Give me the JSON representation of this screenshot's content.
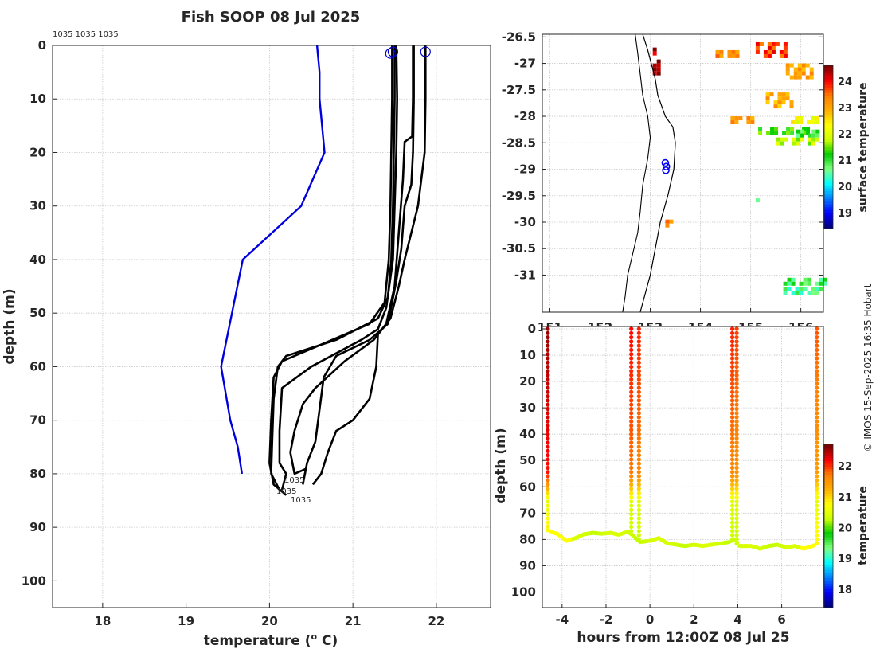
{
  "title": "Fish SOOP 08 Jul 2025",
  "copyright": "© IMOS 15-Sep-2025 16:35 Hobart",
  "top_labels": "1035 1035 1035",
  "profile_labels": [
    "1035",
    "1035",
    "1035"
  ],
  "chart_data": [
    {
      "id": "profiles",
      "type": "line",
      "xlabel": "temperature (o C)",
      "xlabel_main": "temperature (",
      "xlabel_sup": "o",
      "xlabel_tail": " C)",
      "ylabel": "depth (m)",
      "xlim": [
        17.4,
        22.65
      ],
      "ylim": [
        0,
        105
      ],
      "yreversed": true,
      "xticks": [
        18,
        19,
        20,
        21,
        22
      ],
      "yticks": [
        0,
        10,
        20,
        30,
        40,
        50,
        60,
        70,
        80,
        90,
        100
      ],
      "grid": true,
      "climatology": {
        "name": "climatology",
        "color": "#0000dd",
        "points": [
          [
            20.57,
            0
          ],
          [
            20.6,
            5
          ],
          [
            20.6,
            10
          ],
          [
            20.66,
            20
          ],
          [
            20.38,
            30
          ],
          [
            19.68,
            40
          ],
          [
            19.55,
            50
          ],
          [
            19.42,
            60
          ],
          [
            19.53,
            70
          ],
          [
            19.62,
            75
          ],
          [
            19.67,
            80
          ]
        ]
      },
      "series": [
        {
          "name": "profile 1",
          "color": "#000000",
          "points": [
            [
              21.5,
              0
            ],
            [
              21.5,
              10
            ],
            [
              21.49,
              20
            ],
            [
              21.48,
              30
            ],
            [
              21.46,
              40
            ],
            [
              21.42,
              47
            ],
            [
              21.3,
              51
            ],
            [
              20.8,
              55
            ],
            [
              20.2,
              58
            ],
            [
              20.1,
              60
            ],
            [
              20.05,
              66
            ],
            [
              20.03,
              75
            ],
            [
              20.02,
              80
            ],
            [
              20.12,
              83
            ]
          ]
        },
        {
          "name": "profile 2",
          "color": "#000000",
          "points": [
            [
              21.47,
              0
            ],
            [
              21.47,
              10
            ],
            [
              21.46,
              20
            ],
            [
              21.45,
              30
            ],
            [
              21.43,
              40
            ],
            [
              21.38,
              48
            ],
            [
              21.2,
              52
            ],
            [
              20.6,
              56
            ],
            [
              20.15,
              59
            ],
            [
              20.05,
              62
            ],
            [
              20.02,
              70
            ],
            [
              20.0,
              78
            ],
            [
              20.05,
              82
            ],
            [
              20.2,
              84
            ]
          ]
        },
        {
          "name": "profile 3",
          "color": "#000000",
          "points": [
            [
              21.52,
              0
            ],
            [
              21.53,
              10
            ],
            [
              21.52,
              20
            ],
            [
              21.5,
              30
            ],
            [
              21.48,
              40
            ],
            [
              21.4,
              49
            ],
            [
              21.3,
              53
            ],
            [
              21.1,
              55
            ],
            [
              20.5,
              60
            ],
            [
              20.15,
              64
            ],
            [
              20.12,
              72
            ],
            [
              20.12,
              78
            ],
            [
              20.2,
              80
            ],
            [
              20.15,
              83
            ]
          ]
        },
        {
          "name": "profile 4",
          "color": "#000000",
          "points": [
            [
              21.72,
              0
            ],
            [
              21.72,
              10
            ],
            [
              21.71,
              17
            ],
            [
              21.62,
              18
            ],
            [
              21.6,
              25
            ],
            [
              21.55,
              35
            ],
            [
              21.5,
              45
            ],
            [
              21.4,
              52
            ],
            [
              21.25,
              55
            ],
            [
              20.9,
              59
            ],
            [
              20.55,
              64
            ],
            [
              20.4,
              67
            ],
            [
              20.3,
              72
            ],
            [
              20.25,
              76
            ],
            [
              20.3,
              80
            ],
            [
              20.45,
              79
            ]
          ]
        },
        {
          "name": "profile 5",
          "color": "#000000",
          "points": [
            [
              21.73,
              0
            ],
            [
              21.73,
              10
            ],
            [
              21.72,
              20
            ],
            [
              21.7,
              26
            ],
            [
              21.62,
              30
            ],
            [
              21.58,
              38
            ],
            [
              21.52,
              44
            ],
            [
              21.42,
              52
            ],
            [
              21.2,
              55
            ],
            [
              20.8,
              58
            ],
            [
              20.65,
              62
            ],
            [
              20.6,
              68
            ],
            [
              20.55,
              74
            ],
            [
              20.45,
              78
            ],
            [
              20.4,
              82
            ]
          ]
        },
        {
          "name": "profile 6",
          "color": "#000000",
          "points": [
            [
              21.87,
              0
            ],
            [
              21.87,
              10
            ],
            [
              21.86,
              20
            ],
            [
              21.82,
              25
            ],
            [
              21.78,
              30
            ],
            [
              21.7,
              35
            ],
            [
              21.62,
              40
            ],
            [
              21.55,
              45
            ],
            [
              21.45,
              51
            ],
            [
              21.3,
              54
            ],
            [
              21.28,
              60
            ],
            [
              21.2,
              66
            ],
            [
              21.0,
              70
            ],
            [
              20.8,
              72
            ],
            [
              20.7,
              76
            ],
            [
              20.62,
              80
            ],
            [
              20.52,
              82
            ]
          ]
        }
      ],
      "surface_markers": [
        [
          21.45,
          1.5
        ],
        [
          21.48,
          1.2
        ],
        [
          21.87,
          1.2
        ]
      ]
    },
    {
      "id": "sst-map",
      "type": "heatmap",
      "xticks": [
        151,
        152,
        153,
        154,
        155,
        156
      ],
      "yticks": [
        -26.5,
        -27,
        -27.5,
        -28,
        -28.5,
        -29,
        -29.5,
        -30,
        -30.5,
        -31
      ],
      "xlim": [
        150.85,
        156.45
      ],
      "ylim": [
        -31.7,
        -26.45
      ],
      "colorbar_label": "surface temperature",
      "colorbar_ticks": [
        19,
        20,
        21,
        22,
        23,
        24
      ],
      "colorbar_range": [
        18.4,
        24.6
      ],
      "ship_positions": [
        [
          153.3,
          -28.88
        ],
        [
          153.32,
          -28.95
        ],
        [
          153.31,
          -29.02
        ]
      ],
      "coastline": [
        [
          152.85,
          -26.45
        ],
        [
          152.95,
          -26.75
        ],
        [
          153.02,
          -27.0
        ],
        [
          153.1,
          -27.3
        ],
        [
          153.15,
          -27.6
        ],
        [
          153.3,
          -28.0
        ],
        [
          153.45,
          -28.2
        ],
        [
          153.5,
          -28.5
        ],
        [
          153.47,
          -29.0
        ],
        [
          153.35,
          -29.5
        ],
        [
          153.2,
          -30.0
        ],
        [
          153.1,
          -30.5
        ],
        [
          153.0,
          -31.0
        ],
        [
          152.9,
          -31.35
        ],
        [
          152.8,
          -31.7
        ]
      ],
      "contour": [
        [
          152.7,
          -26.45
        ],
        [
          152.75,
          -26.8
        ],
        [
          152.8,
          -27.2
        ],
        [
          152.85,
          -27.6
        ],
        [
          152.95,
          -28.0
        ],
        [
          153.0,
          -28.4
        ],
        [
          152.95,
          -28.8
        ],
        [
          152.85,
          -29.3
        ],
        [
          152.8,
          -29.8
        ],
        [
          152.75,
          -30.2
        ],
        [
          152.65,
          -30.6
        ],
        [
          152.55,
          -31.0
        ],
        [
          152.5,
          -31.4
        ],
        [
          152.45,
          -31.7
        ]
      ],
      "patches": [
        {
          "lon": 155.1,
          "lat": -26.6,
          "w": 0.6,
          "h": 0.25,
          "t": 23.8
        },
        {
          "lon": 154.3,
          "lat": -26.75,
          "w": 0.5,
          "h": 0.12,
          "t": 23.3
        },
        {
          "lon": 153.05,
          "lat": -26.7,
          "w": 0.15,
          "h": 0.5,
          "t": 24.4
        },
        {
          "lon": 155.7,
          "lat": -27.0,
          "w": 0.5,
          "h": 0.3,
          "t": 23.1
        },
        {
          "lon": 155.3,
          "lat": -27.55,
          "w": 0.55,
          "h": 0.25,
          "t": 23.0
        },
        {
          "lon": 154.6,
          "lat": -28.0,
          "w": 0.4,
          "h": 0.12,
          "t": 23.2
        },
        {
          "lon": 155.8,
          "lat": -28.0,
          "w": 0.65,
          "h": 0.12,
          "t": 22.2
        },
        {
          "lon": 155.15,
          "lat": -28.2,
          "w": 1.0,
          "h": 0.14,
          "t": 21.3
        },
        {
          "lon": 155.5,
          "lat": -28.4,
          "w": 1.0,
          "h": 0.1,
          "t": 21.8
        },
        {
          "lon": 155.9,
          "lat": -28.25,
          "w": 0.5,
          "h": 0.15,
          "t": 20.9
        },
        {
          "lon": 153.3,
          "lat": -29.95,
          "w": 0.15,
          "h": 0.15,
          "t": 23.4
        },
        {
          "lon": 155.1,
          "lat": -29.55,
          "w": 0.06,
          "h": 0.06,
          "t": 20.6
        },
        {
          "lon": 155.65,
          "lat": -31.05,
          "w": 0.85,
          "h": 0.15,
          "t": 20.8
        },
        {
          "lon": 155.65,
          "lat": -31.22,
          "w": 0.75,
          "h": 0.1,
          "t": 20.6
        }
      ]
    },
    {
      "id": "depth-time",
      "type": "scatter",
      "xlabel": "hours from 12:00Z 08 Jul 25",
      "ylabel": "depth (m)",
      "xlim": [
        -4.9,
        7.9
      ],
      "ylim": [
        0,
        105
      ],
      "yreversed": true,
      "xticks": [
        -4,
        -2,
        0,
        2,
        4,
        6
      ],
      "yticks": [
        0,
        10,
        20,
        30,
        40,
        50,
        60,
        70,
        80,
        90,
        100
      ],
      "colorbar_label": "temperature",
      "colorbar_ticks": [
        18,
        19,
        20,
        21,
        22
      ],
      "colorbar_range": [
        17.4,
        22.7
      ],
      "track": [
        [
          -4.65,
          76.5
        ],
        [
          -4.2,
          78.0
        ],
        [
          -3.8,
          80.5
        ],
        [
          -3.4,
          79.5
        ],
        [
          -3.0,
          78.0
        ],
        [
          -2.6,
          77.5
        ],
        [
          -2.2,
          77.8
        ],
        [
          -1.8,
          77.5
        ],
        [
          -1.4,
          78.2
        ],
        [
          -1.0,
          77.0
        ],
        [
          -0.85,
          78.0
        ],
        [
          -0.45,
          81.0
        ],
        [
          0.0,
          80.5
        ],
        [
          0.4,
          79.5
        ],
        [
          0.8,
          81.5
        ],
        [
          1.2,
          82.0
        ],
        [
          1.6,
          82.5
        ],
        [
          2.0,
          82.0
        ],
        [
          2.4,
          82.5
        ],
        [
          2.8,
          82.0
        ],
        [
          3.2,
          81.5
        ],
        [
          3.6,
          81.0
        ],
        [
          3.85,
          80.0
        ],
        [
          4.1,
          82.5
        ],
        [
          4.6,
          82.5
        ],
        [
          5.0,
          83.5
        ],
        [
          5.4,
          82.5
        ],
        [
          5.8,
          82.0
        ],
        [
          6.2,
          83.0
        ],
        [
          6.6,
          82.5
        ],
        [
          7.0,
          83.5
        ],
        [
          7.4,
          82.5
        ],
        [
          7.55,
          82.0
        ]
      ],
      "casts": [
        {
          "t": -4.65,
          "bottom": 76.5,
          "surface_temp": 22.6,
          "bottom_temp": 20.9
        },
        {
          "t": -0.85,
          "bottom": 78.0,
          "surface_temp": 22.2,
          "bottom_temp": 20.3
        },
        {
          "t": -0.5,
          "bottom": 81.0,
          "surface_temp": 22.1,
          "bottom_temp": 20.3
        },
        {
          "t": 3.75,
          "bottom": 80.0,
          "surface_temp": 22.1,
          "bottom_temp": 20.3
        },
        {
          "t": 3.95,
          "bottom": 82.0,
          "surface_temp": 22.0,
          "bottom_temp": 20.3
        },
        {
          "t": 7.6,
          "bottom": 82.0,
          "surface_temp": 21.9,
          "bottom_temp": 20.8
        }
      ]
    }
  ]
}
